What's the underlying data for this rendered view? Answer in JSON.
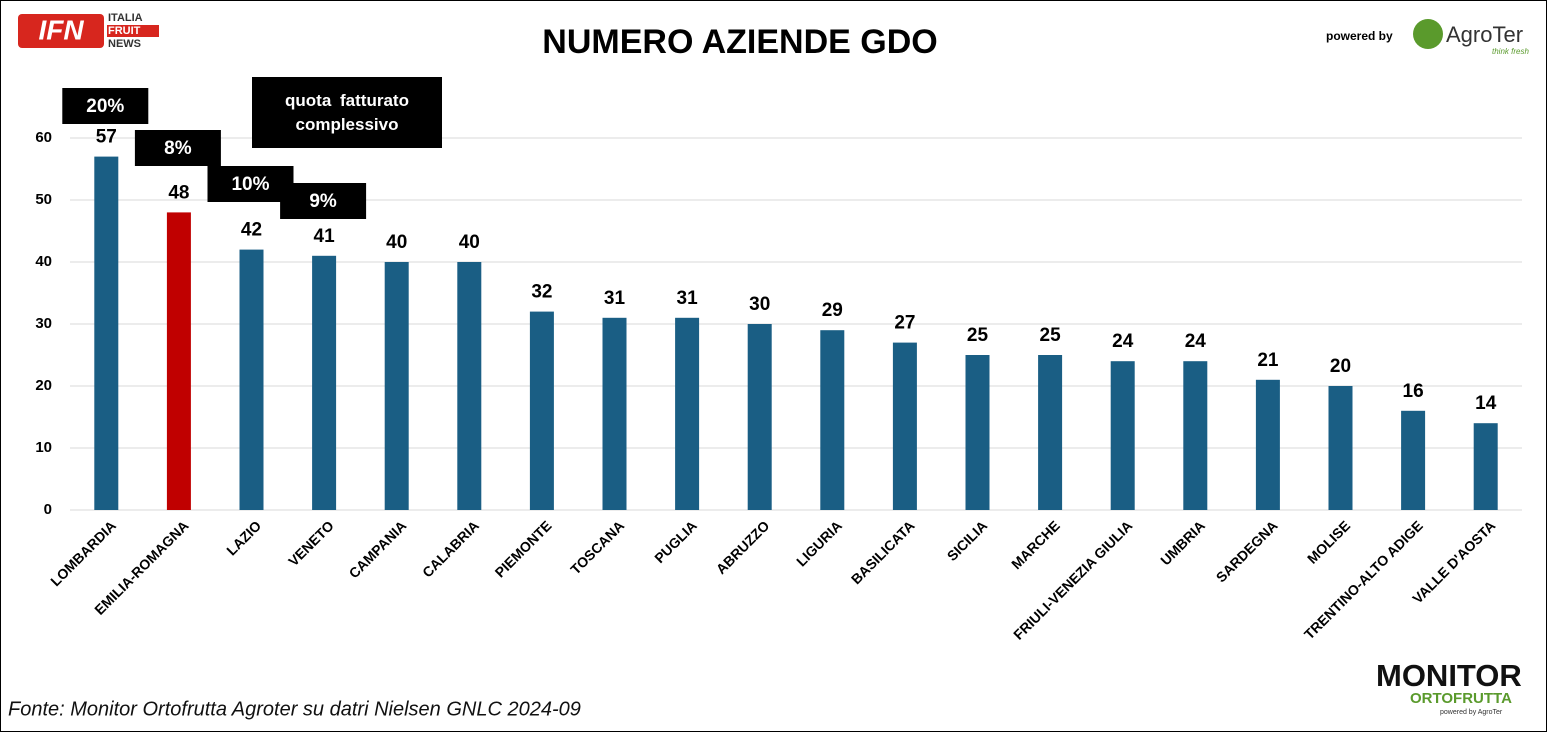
{
  "chart_data": {
    "type": "bar",
    "title": "NUMERO AZIENDE GDO",
    "categories": [
      "LOMBARDIA",
      "EMILIA-ROMAGNA",
      "LAZIO",
      "VENETO",
      "CAMPANIA",
      "CALABRIA",
      "PIEMONTE",
      "TOSCANA",
      "PUGLIA",
      "ABRUZZO",
      "LIGURIA",
      "BASILICATA",
      "SICILIA",
      "MARCHE",
      "FRIULI-VENEZIA GIULIA",
      "UMBRIA",
      "SARDEGNA",
      "MOLISE",
      "TRENTINO-ALTO ADIGE",
      "VALLE D'AOSTA"
    ],
    "values": [
      57,
      48,
      42,
      41,
      40,
      40,
      32,
      31,
      31,
      30,
      29,
      27,
      25,
      25,
      24,
      24,
      21,
      20,
      16,
      14
    ],
    "colors": [
      "#1a5e84",
      "#c00000",
      "#1a5e84",
      "#1a5e84",
      "#1a5e84",
      "#1a5e84",
      "#1a5e84",
      "#1a5e84",
      "#1a5e84",
      "#1a5e84",
      "#1a5e84",
      "#1a5e84",
      "#1a5e84",
      "#1a5e84",
      "#1a5e84",
      "#1a5e84",
      "#1a5e84",
      "#1a5e84",
      "#1a5e84",
      "#1a5e84"
    ],
    "ylim": [
      0,
      60
    ],
    "yticks": [
      0,
      10,
      20,
      30,
      40,
      50,
      60
    ],
    "grid": true,
    "annotation_title": "quota fatturato complessivo",
    "annotations": [
      "20%",
      "8%",
      "10%",
      "9%"
    ],
    "source": "Fonte: Monitor Ortofrutta Agroter su datri Nielsen GNLC 2024-09",
    "logos": {
      "ifn": {
        "mark": "IFN",
        "lines": [
          "ITALIA",
          "FRUIT",
          "NEWS"
        ]
      },
      "powered": "powered by",
      "agroter": {
        "name": "AgroTer",
        "tagline": "think fresh"
      },
      "monitor": {
        "name": "MONITOR",
        "sub": "ORTOFRUTTA",
        "powered": "powered by AgroTer"
      }
    }
  }
}
